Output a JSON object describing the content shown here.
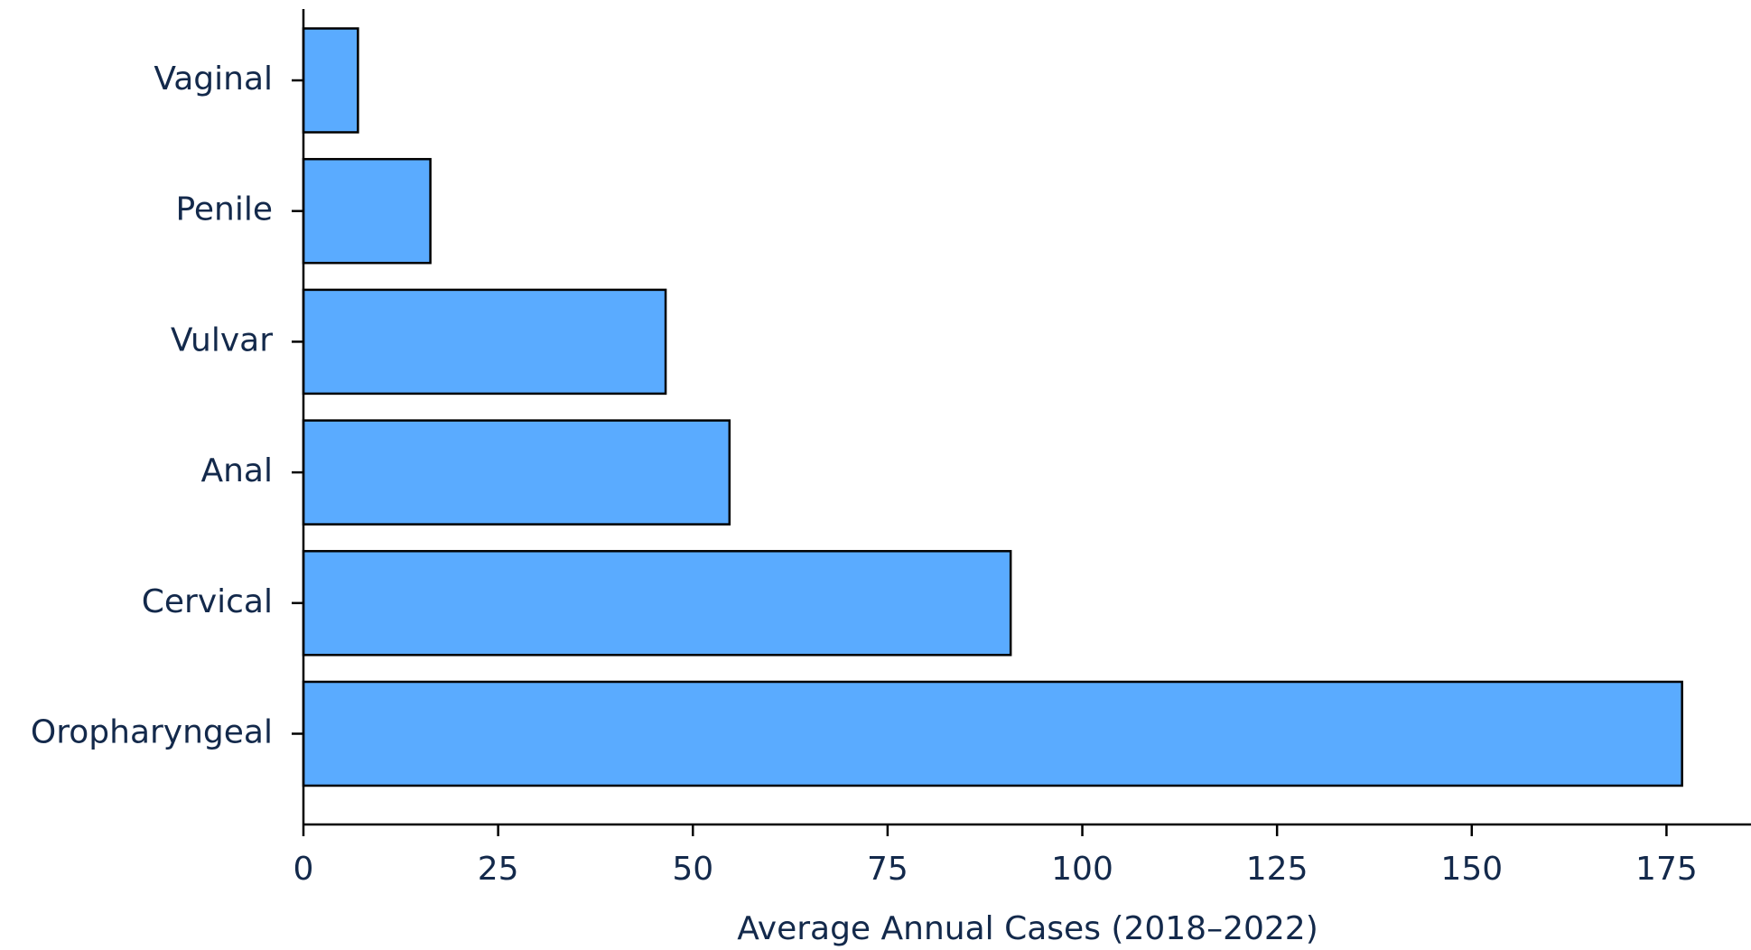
{
  "chart_data": {
    "type": "barh",
    "xlabel": "Average Annual Cases (2018–2022)",
    "categories": [
      "Vaginal",
      "Penile",
      "Vulvar",
      "Anal",
      "Cervical",
      "Oropharyngeal"
    ],
    "values": [
      7.0,
      16.3,
      46.5,
      54.7,
      90.8,
      177.0
    ],
    "color": "#5aabff",
    "xlim": [
      0,
      185.85
    ],
    "xticks": [
      0,
      25,
      50,
      75,
      100,
      125,
      150,
      175
    ]
  }
}
